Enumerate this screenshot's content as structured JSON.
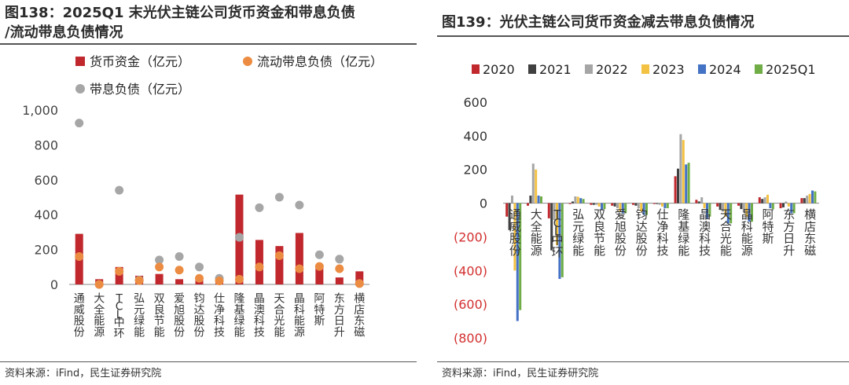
{
  "left": {
    "title_line1": "图138：2025Q1 末光伏主链公司货币资金和带息负债",
    "title_line2": "/流动带息负债情况",
    "source": "资料来源：iFind，民生证券研究院",
    "chart_data": {
      "type": "bar",
      "categories": [
        "通威股份",
        "大全能源",
        "TCL中环",
        "弘元绿能",
        "双良节能",
        "爱旭股份",
        "钧达股份",
        "仕净科技",
        "隆基绿能",
        "晶澳科技",
        "天合光能",
        "晶科能源",
        "阿特斯",
        "东方日升",
        "横店东磁"
      ],
      "series": [
        {
          "name": "货币资金（亿元）",
          "kind": "bar",
          "color": "#c0282d",
          "values": [
            290,
            30,
            100,
            50,
            60,
            30,
            30,
            10,
            515,
            255,
            220,
            295,
            110,
            40,
            75
          ]
        },
        {
          "name": "流动带息负债（亿元）",
          "kind": "marker",
          "color": "#ec8c42",
          "values": [
            160,
            0,
            75,
            22,
            100,
            82,
            35,
            20,
            30,
            100,
            165,
            90,
            103,
            90,
            5
          ]
        },
        {
          "name": "带息负债（亿元）",
          "kind": "marker",
          "color": "#a6a6a6",
          "values": [
            925,
            0,
            540,
            25,
            140,
            160,
            100,
            35,
            270,
            440,
            500,
            455,
            170,
            145,
            5
          ]
        }
      ],
      "ylim": [
        0,
        1000
      ],
      "yticks": [
        0,
        200,
        400,
        600,
        800,
        1000
      ],
      "ytick_labels": [
        "0",
        "200",
        "400",
        "600",
        "800",
        "1,000"
      ],
      "legend_position": "top"
    }
  },
  "right": {
    "title": "图139：光伏主链公司货币资金减去带息负债情况",
    "source": "资料来源：iFind，民生证券研究院",
    "chart_data": {
      "type": "bar",
      "categories": [
        "通威股份",
        "大全能源",
        "TCL中环",
        "弘元绿能",
        "双良节能",
        "爱旭股份",
        "钧达股份",
        "仕净科技",
        "隆基绿能",
        "晶澳科技",
        "天合光能",
        "晶科能源",
        "阿特斯",
        "东方日升",
        "横店东磁"
      ],
      "series": [
        {
          "name": "2020",
          "color": "#c0282d",
          "values": [
            -80,
            -15,
            -90,
            -5,
            -10,
            -15,
            -10,
            -5,
            160,
            20,
            -20,
            -15,
            35,
            -30,
            30
          ]
        },
        {
          "name": "2021",
          "color": "#404040",
          "values": [
            -160,
            45,
            -280,
            10,
            -10,
            -20,
            -15,
            -5,
            205,
            10,
            -40,
            -35,
            25,
            -25,
            30
          ]
        },
        {
          "name": "2022",
          "color": "#a6a6a6",
          "values": [
            45,
            235,
            -100,
            40,
            -10,
            -30,
            -30,
            -10,
            410,
            35,
            -50,
            -55,
            35,
            10,
            45
          ]
        },
        {
          "name": "2023",
          "color": "#f3c243",
          "values": [
            -400,
            200,
            -250,
            38,
            -20,
            -50,
            -50,
            -20,
            375,
            -30,
            -80,
            -80,
            50,
            -20,
            55
          ]
        },
        {
          "name": "2024",
          "color": "#4472c4",
          "values": [
            -700,
            45,
            -450,
            30,
            -40,
            -60,
            -70,
            -30,
            230,
            -90,
            -120,
            -110,
            -30,
            -60,
            75
          ]
        },
        {
          "name": "2025Q1",
          "color": "#70ad47",
          "values": [
            -635,
            40,
            -440,
            25,
            -35,
            -60,
            -70,
            -30,
            240,
            -80,
            -120,
            -110,
            -35,
            -60,
            70
          ]
        }
      ],
      "ylim": [
        -800,
        600
      ],
      "yticks": [
        -800,
        -600,
        -400,
        -200,
        0,
        200,
        400,
        600
      ],
      "ytick_labels": [
        "(800)",
        "(600)",
        "(400)",
        "(200)",
        "0",
        "200",
        "400",
        "600"
      ],
      "legend_position": "top"
    }
  }
}
